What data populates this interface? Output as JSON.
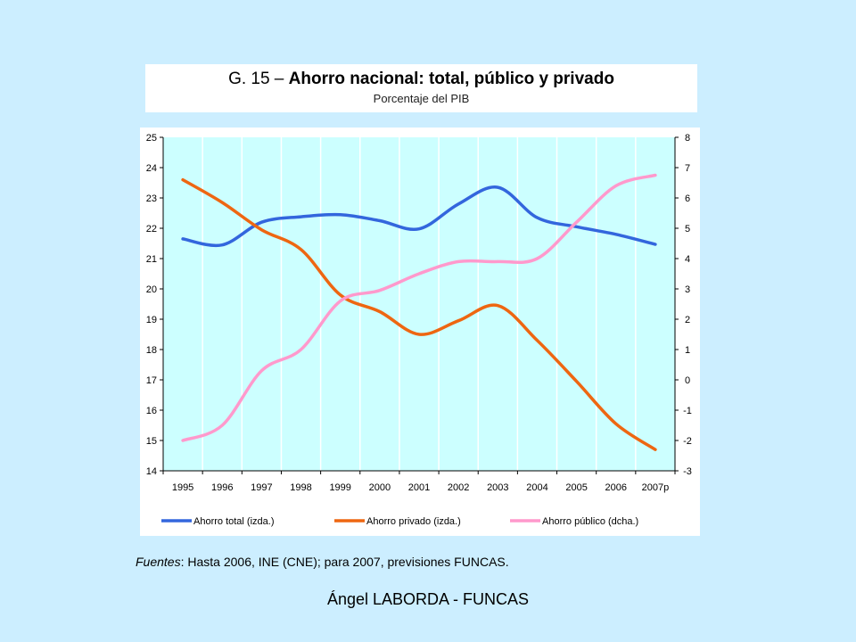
{
  "title_prefix": "G. 15 – ",
  "title_main": "Ahorro nacional: total, público y privado",
  "subtitle": "Porcentaje del PIB",
  "sources_label": "Fuentes",
  "sources_text": ": Hasta 2006, INE (CNE); para 2007, previsiones FUNCAS.",
  "footer": "Ángel LABORDA - FUNCAS",
  "colors": {
    "background": "#cceeff",
    "plot_background": "#ccffff",
    "total": "#3366dd",
    "privado": "#ee6611",
    "publico": "#ff99cc"
  },
  "chart_data": {
    "type": "line",
    "x": [
      "1995",
      "1996",
      "1997",
      "1998",
      "1999",
      "2000",
      "2001",
      "2002",
      "2003",
      "2004",
      "2005",
      "2006",
      "2007p"
    ],
    "y_left_ticks": [
      "25",
      "24",
      "23",
      "22",
      "21",
      "20",
      "19",
      "18",
      "17",
      "16",
      "15",
      "14"
    ],
    "y_right_ticks": [
      "8",
      "7",
      "6",
      "5",
      "4",
      "3",
      "2",
      "1",
      "0",
      "-1",
      "-2",
      "-3"
    ],
    "ylim_left": [
      14,
      25
    ],
    "ylim_right": [
      -3,
      8
    ],
    "grid": "vertical",
    "legend_position": "bottom",
    "series": [
      {
        "name": "Ahorro total (izda.)",
        "axis": "left",
        "color": "#3366dd",
        "values": [
          21.65,
          21.45,
          22.2,
          22.38,
          22.45,
          22.25,
          21.98,
          22.8,
          23.35,
          22.35,
          22.05,
          21.8,
          21.47
        ]
      },
      {
        "name": "Ahorro privado (izda.)",
        "axis": "left",
        "color": "#ee6611",
        "values": [
          23.6,
          22.85,
          21.95,
          21.3,
          19.8,
          19.25,
          18.5,
          18.95,
          19.45,
          18.3,
          16.95,
          15.55,
          14.7
        ]
      },
      {
        "name": "Ahorro público (dcha.)",
        "axis": "right",
        "color": "#ff99cc",
        "values": [
          -2.0,
          -1.5,
          0.3,
          1.0,
          2.6,
          2.95,
          3.5,
          3.9,
          3.9,
          4.0,
          5.2,
          6.4,
          6.75
        ]
      }
    ]
  }
}
